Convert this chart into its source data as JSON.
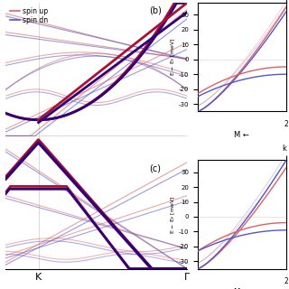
{
  "spin_up_color": "#e06060",
  "spin_dn_color": "#5555cc",
  "spin_up_dark": "#aa1133",
  "spin_dn_dark": "#330077",
  "bg_color": "#ffffff",
  "panel_b_label": "(b)",
  "panel_c_label": "(c)",
  "xlabel_K": "K",
  "xlabel_Gamma": "Γ",
  "k_label": "k",
  "k_tick": "2",
  "xlabel_M": "M ←",
  "ylim_bc": [
    -35,
    38
  ],
  "yticks_bc": [
    -30,
    -20,
    -10,
    0,
    10,
    20,
    30
  ],
  "lw_thin": 0.8,
  "lw_thick": 2.0
}
